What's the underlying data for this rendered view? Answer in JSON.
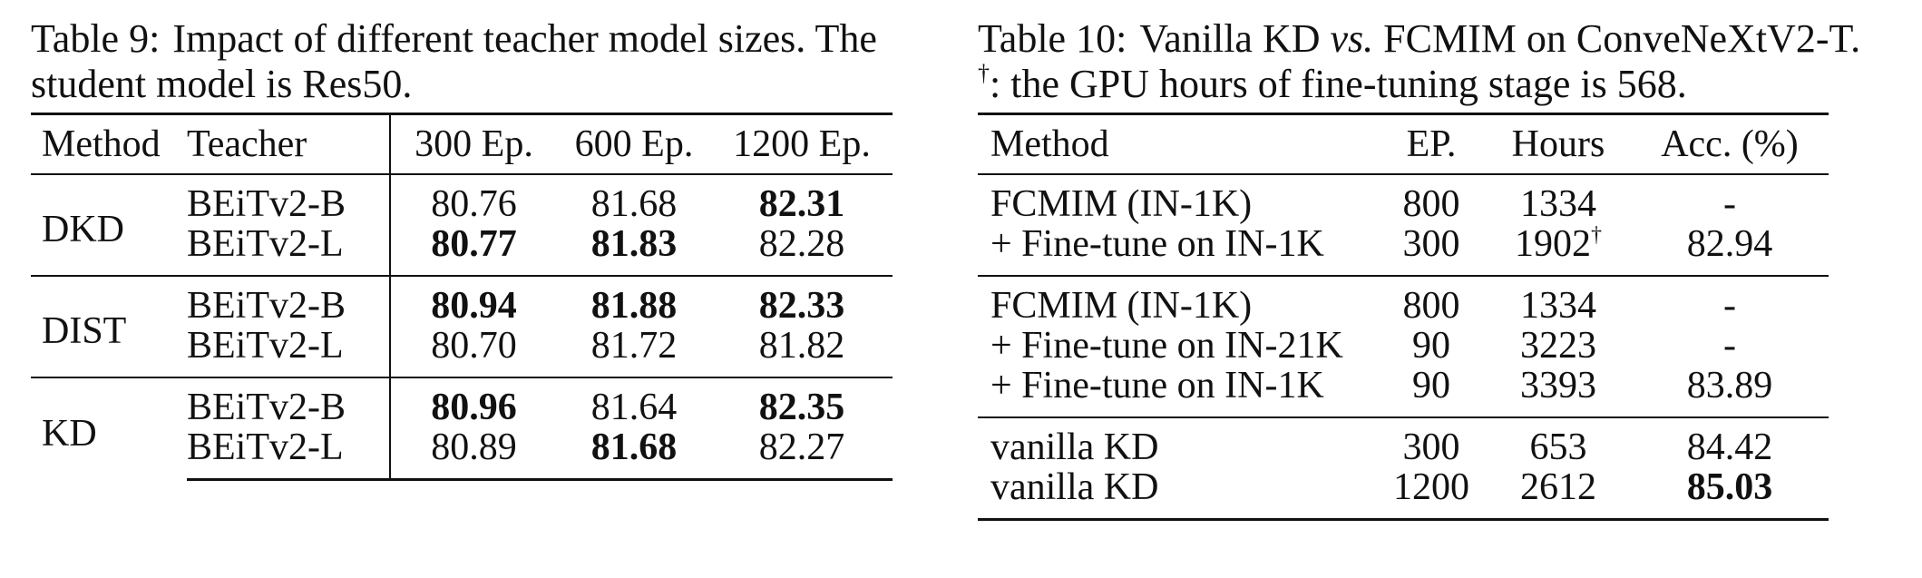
{
  "table9": {
    "label": "Table 9:",
    "caption_line1": "Impact of different teacher model sizes. The",
    "caption_line2": "student model is Res50.",
    "headers": [
      "Method",
      "Teacher",
      "300 Ep.",
      "600 Ep.",
      "1200 Ep."
    ],
    "groups": [
      {
        "method": "DKD",
        "rows": [
          {
            "teacher": "BEiTv2-B",
            "values": [
              "80.76",
              "81.68",
              "82.31"
            ],
            "bold": [
              false,
              false,
              true
            ]
          },
          {
            "teacher": "BEiTv2-L",
            "values": [
              "80.77",
              "81.83",
              "82.28"
            ],
            "bold": [
              true,
              true,
              false
            ]
          }
        ]
      },
      {
        "method": "DIST",
        "rows": [
          {
            "teacher": "BEiTv2-B",
            "values": [
              "80.94",
              "81.88",
              "82.33"
            ],
            "bold": [
              true,
              true,
              true
            ]
          },
          {
            "teacher": "BEiTv2-L",
            "values": [
              "80.70",
              "81.72",
              "81.82"
            ],
            "bold": [
              false,
              false,
              false
            ]
          }
        ]
      },
      {
        "method": "KD",
        "rows": [
          {
            "teacher": "BEiTv2-B",
            "values": [
              "80.96",
              "81.64",
              "82.35"
            ],
            "bold": [
              true,
              false,
              true
            ]
          },
          {
            "teacher": "BEiTv2-L",
            "values": [
              "80.89",
              "81.68",
              "82.27"
            ],
            "bold": [
              false,
              true,
              false
            ]
          }
        ]
      }
    ]
  },
  "table10": {
    "label": "Table 10:",
    "caption_line1_a": "Vanilla KD",
    "caption_line1_vs": "vs.",
    "caption_line1_b": "FCMIM on ConveNeXtV2-T.",
    "caption_dagger": "†",
    "caption_line2": ": the GPU hours of fine-tuning stage is 568.",
    "headers": [
      "Method",
      "EP.",
      "Hours",
      "Acc. (%)"
    ],
    "groups": [
      {
        "rows": [
          {
            "method": "FCMIM (IN-1K)",
            "ep": "800",
            "hours": "1334",
            "dagger": "",
            "acc": "-",
            "acc_bold": false
          },
          {
            "method": "+ Fine-tune on IN-1K",
            "ep": "300",
            "hours": "1902",
            "dagger": "†",
            "acc": "82.94",
            "acc_bold": false
          }
        ]
      },
      {
        "rows": [
          {
            "method": "FCMIM (IN-1K)",
            "ep": "800",
            "hours": "1334",
            "dagger": "",
            "acc": "-",
            "acc_bold": false
          },
          {
            "method": "+ Fine-tune on IN-21K",
            "ep": "90",
            "hours": "3223",
            "dagger": "",
            "acc": "-",
            "acc_bold": false
          },
          {
            "method": "+ Fine-tune on IN-1K",
            "ep": "90",
            "hours": "3393",
            "dagger": "",
            "acc": "83.89",
            "acc_bold": false
          }
        ]
      },
      {
        "rows": [
          {
            "method": "vanilla KD",
            "ep": "300",
            "hours": "653",
            "dagger": "",
            "acc": "84.42",
            "acc_bold": false
          },
          {
            "method": "vanilla KD",
            "ep": "1200",
            "hours": "2612",
            "dagger": "",
            "acc": "85.03",
            "acc_bold": true
          }
        ]
      }
    ]
  }
}
